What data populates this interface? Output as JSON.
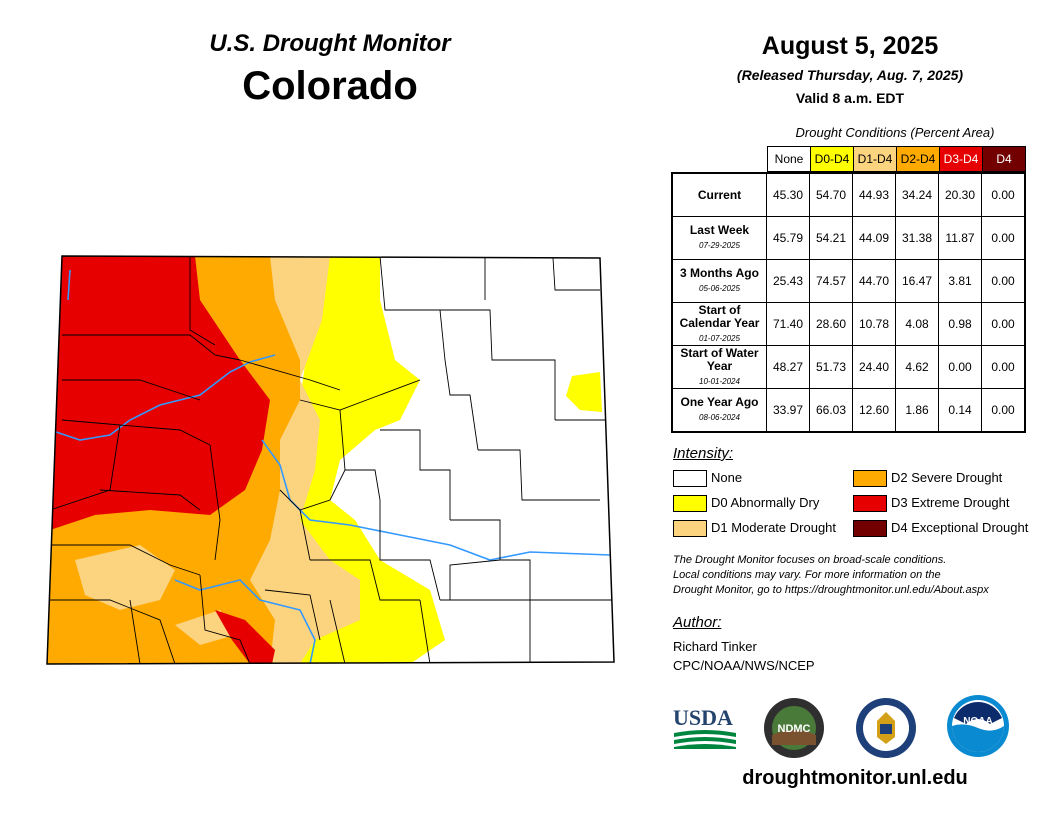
{
  "header": {
    "brand": "U.S. Drought Monitor",
    "state": "Colorado",
    "date": "August 5, 2025",
    "released": "(Released Thursday, Aug. 7, 2025)",
    "valid": "Valid 8 a.m. EDT"
  },
  "table": {
    "title": "Drought Conditions (Percent Area)",
    "columns": [
      {
        "label": "None",
        "color": "#ffffff",
        "text": "#000000"
      },
      {
        "label": "D0-D4",
        "color": "#ffff00",
        "text": "#000000"
      },
      {
        "label": "D1-D4",
        "color": "#fcd37f",
        "text": "#000000"
      },
      {
        "label": "D2-D4",
        "color": "#ffaa00",
        "text": "#000000"
      },
      {
        "label": "D3-D4",
        "color": "#e60000",
        "text": "#ffffff"
      },
      {
        "label": "D4",
        "color": "#730000",
        "text": "#ffffff"
      }
    ],
    "rows": [
      {
        "label": "Current",
        "date": "",
        "values": [
          "45.30",
          "54.70",
          "44.93",
          "34.24",
          "20.30",
          "0.00"
        ]
      },
      {
        "label": "Last Week",
        "date": "07-29-2025",
        "values": [
          "45.79",
          "54.21",
          "44.09",
          "31.38",
          "11.87",
          "0.00"
        ]
      },
      {
        "label": "3 Months Ago",
        "date": "05-06-2025",
        "values": [
          "25.43",
          "74.57",
          "44.70",
          "16.47",
          "3.81",
          "0.00"
        ]
      },
      {
        "label": "Start of Calendar Year",
        "date": "01-07-2025",
        "values": [
          "71.40",
          "28.60",
          "10.78",
          "4.08",
          "0.98",
          "0.00"
        ]
      },
      {
        "label": "Start of Water Year",
        "date": "10-01-2024",
        "values": [
          "48.27",
          "51.73",
          "24.40",
          "4.62",
          "0.00",
          "0.00"
        ]
      },
      {
        "label": "One Year Ago",
        "date": "08-06-2024",
        "values": [
          "33.97",
          "66.03",
          "12.60",
          "1.86",
          "0.14",
          "0.00"
        ]
      }
    ]
  },
  "legend": {
    "title": "Intensity:",
    "items": [
      {
        "label": "None",
        "color": "#ffffff"
      },
      {
        "label": "D0 Abnormally Dry",
        "color": "#ffff00"
      },
      {
        "label": "D1 Moderate Drought",
        "color": "#fcd37f"
      },
      {
        "label": "D2 Severe Drought",
        "color": "#ffaa00"
      },
      {
        "label": "D3 Extreme Drought",
        "color": "#e60000"
      },
      {
        "label": "D4 Exceptional Drought",
        "color": "#730000"
      }
    ]
  },
  "note": {
    "line1": "The Drought Monitor focuses on broad-scale conditions.",
    "line2": "Local conditions may vary. For more information on the",
    "line3": "Drought Monitor, go to https://droughtmonitor.unl.edu/About.aspx"
  },
  "author": {
    "title": "Author:",
    "name": "Richard Tinker",
    "org": "CPC/NOAA/NWS/NCEP"
  },
  "logos": {
    "usda": "USDA",
    "ndmc": "NDMC",
    "noaa": "NOAA",
    "icons": [
      "usda-logo",
      "ndmc-logo",
      "commerce-seal-logo",
      "noaa-logo"
    ]
  },
  "footer": {
    "url": "droughtmonitor.unl.edu"
  },
  "map": {
    "river_color": "#3399ff",
    "categories": [
      "none",
      "D0",
      "D1",
      "D2",
      "D3"
    ]
  }
}
